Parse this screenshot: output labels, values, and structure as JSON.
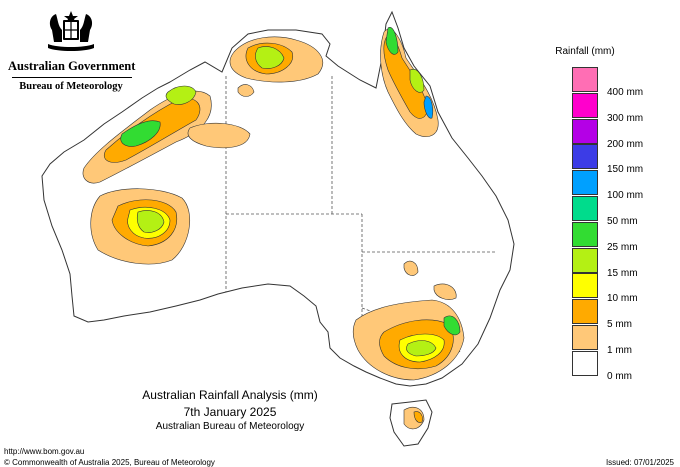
{
  "branding": {
    "government": "Australian Government",
    "bureau": "Bureau of Meteorology"
  },
  "legend": {
    "title": "Rainfall (mm)",
    "items": [
      {
        "label": "400 mm",
        "color": "#ff6eb4"
      },
      {
        "label": "300 mm",
        "color": "#ff00cc"
      },
      {
        "label": "200 mm",
        "color": "#b400e6"
      },
      {
        "label": "150 mm",
        "color": "#3c3ce6"
      },
      {
        "label": "100 mm",
        "color": "#00a0ff"
      },
      {
        "label": "50 mm",
        "color": "#00dc8c"
      },
      {
        "label": "25 mm",
        "color": "#32dc32"
      },
      {
        "label": "15 mm",
        "color": "#b4f014"
      },
      {
        "label": "10 mm",
        "color": "#ffff00"
      },
      {
        "label": "5 mm",
        "color": "#ffaa00"
      },
      {
        "label": "1 mm",
        "color": "#ffc878"
      },
      {
        "label": "0 mm",
        "color": "#ffffff"
      }
    ]
  },
  "chart": {
    "title": "Australian Rainfall Analysis (mm)",
    "date": "7th January 2025",
    "source": "Australian Bureau of Meteorology"
  },
  "footer": {
    "url": "http://www.bom.gov.au",
    "copyright": "© Commonwealth of Australia 2025, Bureau of Meteorology",
    "issued": "Issued: 07/01/2025"
  },
  "colors": {
    "land": "#ffffff",
    "outline": "#333333",
    "border_dash": "#555555"
  }
}
